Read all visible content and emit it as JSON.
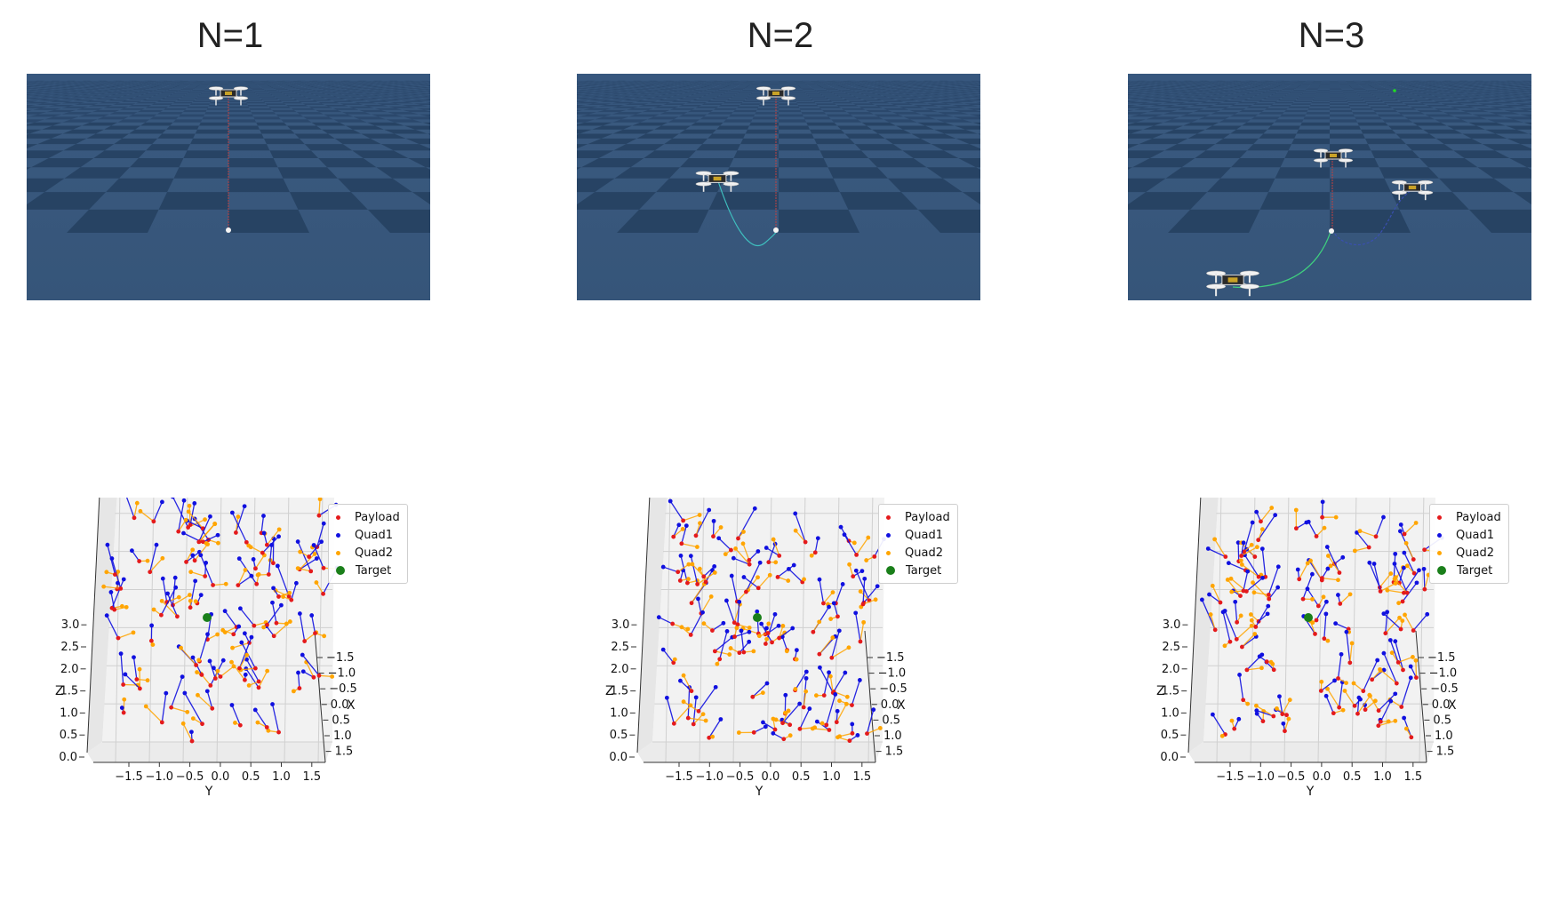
{
  "panels": [
    {
      "title": "N=1",
      "quads": 1
    },
    {
      "title": "N=2",
      "quads": 2
    },
    {
      "title": "N=3",
      "quads": 3
    }
  ],
  "colors": {
    "payload": "#e41a1c",
    "quad1": "#1010e0",
    "quad2": "#ffa500",
    "target": "#1a7f1a",
    "floor_light": "#3f5f86",
    "floor_dark": "#2b4668"
  },
  "chart_data": [
    {
      "type": "scatter",
      "subtype": "3d-scatter",
      "legend": [
        "Payload",
        "Quad1",
        "Quad2",
        "Target"
      ],
      "legend_position": "top-right",
      "xlabel": "X",
      "ylabel": "Y",
      "zlabel": "Z",
      "x_ticks": [
        "1.5",
        "1.0",
        "0.5",
        "0.0",
        "0.5",
        "1.0",
        "1.5"
      ],
      "y_ticks": [
        "−1.5",
        "−1.0",
        "−0.5",
        "0.0",
        "0.5",
        "1.0",
        "1.5"
      ],
      "z_ticks": [
        "0.0",
        "0.5",
        "1.0",
        "1.5",
        "2.0",
        "2.5",
        "3.0"
      ],
      "xlim": [
        -1.5,
        1.5
      ],
      "ylim": [
        -1.5,
        1.5
      ],
      "zlim": [
        0,
        3
      ],
      "grid": true,
      "target": [
        0,
        0,
        1.5
      ]
    },
    {
      "type": "scatter",
      "subtype": "3d-scatter",
      "legend": [
        "Payload",
        "Quad1",
        "Quad2",
        "Target"
      ],
      "legend_position": "top-right",
      "xlabel": "X",
      "ylabel": "Y",
      "zlabel": "Z",
      "x_ticks": [
        "1.5",
        "1.0",
        "0.5",
        "0.0",
        "0.5",
        "1.0",
        "1.5"
      ],
      "y_ticks": [
        "−1.5",
        "−1.0",
        "−0.5",
        "0.0",
        "0.5",
        "1.0",
        "1.5"
      ],
      "z_ticks": [
        "0.0",
        "0.5",
        "1.0",
        "1.5",
        "2.0",
        "2.5",
        "3.0"
      ],
      "xlim": [
        -1.5,
        1.5
      ],
      "ylim": [
        -1.5,
        1.5
      ],
      "zlim": [
        0,
        3
      ],
      "grid": true,
      "target": [
        0,
        0,
        1.5
      ]
    },
    {
      "type": "scatter",
      "subtype": "3d-scatter",
      "legend": [
        "Payload",
        "Quad1",
        "Quad2",
        "Target"
      ],
      "legend_position": "top-right",
      "xlabel": "X",
      "ylabel": "Y",
      "zlabel": "Z",
      "x_ticks": [
        "1.5",
        "1.0",
        "0.5",
        "0.0",
        "0.5",
        "1.0",
        "1.5"
      ],
      "y_ticks": [
        "−1.5",
        "−1.0",
        "−0.5",
        "0.0",
        "0.5",
        "1.0",
        "1.5"
      ],
      "z_ticks": [
        "0.0",
        "0.5",
        "1.0",
        "1.5",
        "2.0",
        "2.5",
        "3.0"
      ],
      "xlim": [
        -1.5,
        1.5
      ],
      "ylim": [
        -1.5,
        1.5
      ],
      "zlim": [
        0,
        3
      ],
      "grid": true,
      "target": [
        0,
        0,
        1.5
      ]
    }
  ]
}
